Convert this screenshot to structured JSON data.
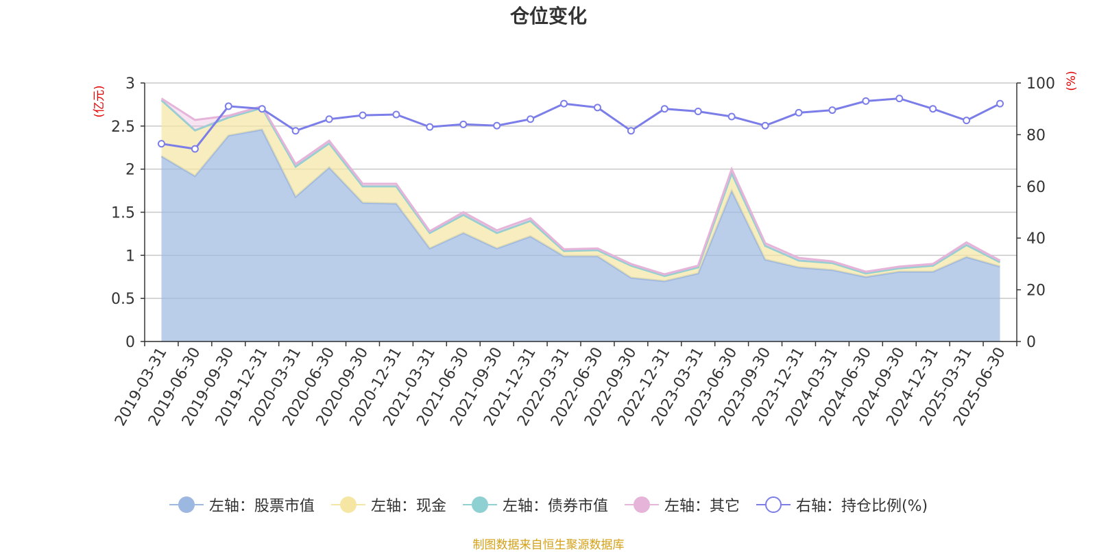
{
  "chart_data": {
    "type": "area",
    "title": "仓位变化",
    "source_note": "制图数据来自恒生聚源数据库",
    "left_axis_unit": "(亿元)",
    "right_axis_unit": "(%)",
    "ylim_left": [
      0,
      3
    ],
    "ylim_right": [
      0,
      100
    ],
    "yticks_left": [
      "0",
      "0.5",
      "1",
      "1.5",
      "2",
      "2.5",
      "3"
    ],
    "yticks_right": [
      "0",
      "20",
      "40",
      "60",
      "80",
      "100"
    ],
    "grid": true,
    "legend_position": "bottom",
    "categories": [
      "2019-03-31",
      "2019-06-30",
      "2019-09-30",
      "2019-12-31",
      "2020-03-31",
      "2020-06-30",
      "2020-09-30",
      "2020-12-31",
      "2021-03-31",
      "2021-06-30",
      "2021-09-30",
      "2021-12-31",
      "2022-03-31",
      "2022-06-30",
      "2022-09-30",
      "2022-12-31",
      "2023-03-31",
      "2023-06-30",
      "2023-09-30",
      "2023-12-31",
      "2024-03-31",
      "2024-06-30",
      "2024-09-30",
      "2024-12-31",
      "2025-03-31",
      "2025-06-30"
    ],
    "series": [
      {
        "name": "左轴：股票市值",
        "axis": "left",
        "type": "stacked-area",
        "color": "#9db8e0",
        "values": [
          2.15,
          1.92,
          2.39,
          2.46,
          1.68,
          2.02,
          1.61,
          1.6,
          1.08,
          1.26,
          1.08,
          1.22,
          0.99,
          0.99,
          0.74,
          0.7,
          0.79,
          1.75,
          0.95,
          0.86,
          0.83,
          0.75,
          0.81,
          0.81,
          0.98,
          0.87
        ]
      },
      {
        "name": "左轴：现金",
        "axis": "left",
        "type": "stacked-area",
        "color": "#f5e6a3",
        "values": [
          0.65,
          0.53,
          0.21,
          0.25,
          0.35,
          0.28,
          0.19,
          0.2,
          0.18,
          0.21,
          0.18,
          0.18,
          0.06,
          0.07,
          0.14,
          0.06,
          0.07,
          0.2,
          0.16,
          0.08,
          0.08,
          0.04,
          0.04,
          0.07,
          0.14,
          0.05
        ]
      },
      {
        "name": "左轴：债券市值",
        "axis": "left",
        "type": "stacked-area",
        "color": "#8fd1d3",
        "values": [
          0,
          0,
          0,
          0,
          0,
          0,
          0,
          0,
          0,
          0,
          0,
          0,
          0,
          0,
          0,
          0,
          0,
          0,
          0,
          0,
          0,
          0,
          0,
          0,
          0,
          0
        ]
      },
      {
        "name": "左轴：其它",
        "axis": "left",
        "type": "stacked-area",
        "color": "#e6b3d9",
        "values": [
          0.02,
          0.12,
          0.02,
          0.02,
          0.03,
          0.03,
          0.03,
          0.03,
          0.02,
          0.03,
          0.03,
          0.03,
          0.02,
          0.02,
          0.02,
          0.02,
          0.02,
          0.05,
          0.03,
          0.03,
          0.02,
          0.02,
          0.02,
          0.02,
          0.03,
          0.02
        ]
      },
      {
        "name": "右轴：持仓比例(%)",
        "axis": "right",
        "type": "line",
        "color": "#7b7de8",
        "values": [
          76.5,
          74.5,
          91.0,
          90.0,
          81.5,
          86.0,
          87.5,
          87.8,
          83.0,
          84.0,
          83.5,
          86.0,
          92.0,
          90.5,
          81.5,
          90.0,
          89.0,
          87.0,
          83.5,
          88.5,
          89.5,
          93.0,
          94.0,
          90.0,
          85.5,
          92.0
        ]
      }
    ]
  }
}
